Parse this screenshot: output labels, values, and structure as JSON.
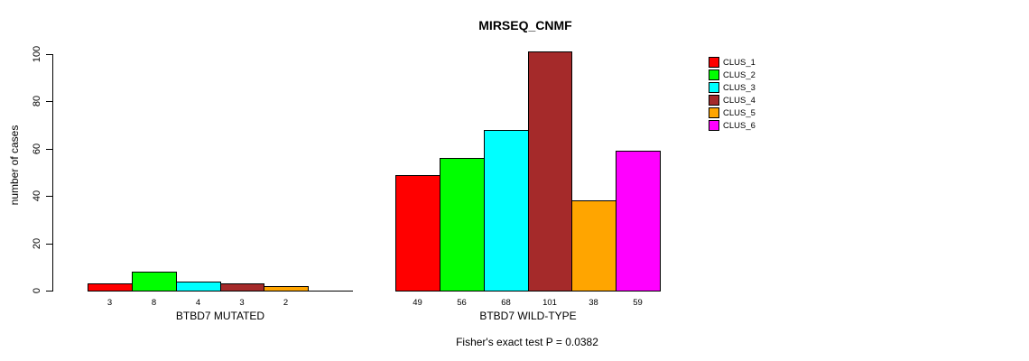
{
  "window": {
    "background": "#FFFFFF",
    "text_color": "#000000"
  },
  "chart_data": {
    "type": "bar",
    "title": "MIRSEQ_CNMF",
    "ylabel": "number of cases",
    "xlabel": "",
    "ylim": [
      0,
      100
    ],
    "yticks": [
      "0",
      "20",
      "40",
      "60",
      "80",
      "100"
    ],
    "grid": false,
    "legend_position": "right",
    "bar_border_color": "#000000",
    "legend": [
      {
        "label": "CLUS_1",
        "color": "#FF0000"
      },
      {
        "label": "CLUS_2",
        "color": "#00FF00"
      },
      {
        "label": "CLUS_3",
        "color": "#00FFFF"
      },
      {
        "label": "CLUS_4",
        "color": "#A52A2A"
      },
      {
        "label": "CLUS_5",
        "color": "#FFA500"
      },
      {
        "label": "CLUS_6",
        "color": "#FF00FF"
      }
    ],
    "groups": [
      {
        "label": "BTBD7 MUTATED",
        "values": [
          3,
          8,
          4,
          3,
          2,
          0
        ],
        "bar_labels": [
          "3",
          "8",
          "4",
          "3",
          "2",
          ""
        ]
      },
      {
        "label": "BTBD7 WILD-TYPE",
        "values": [
          49,
          56,
          68,
          101,
          38,
          59
        ],
        "bar_labels": [
          "49",
          "56",
          "68",
          "101",
          "38",
          "59"
        ]
      }
    ],
    "annotation": "Fisher's exact test P = 0.0382"
  }
}
